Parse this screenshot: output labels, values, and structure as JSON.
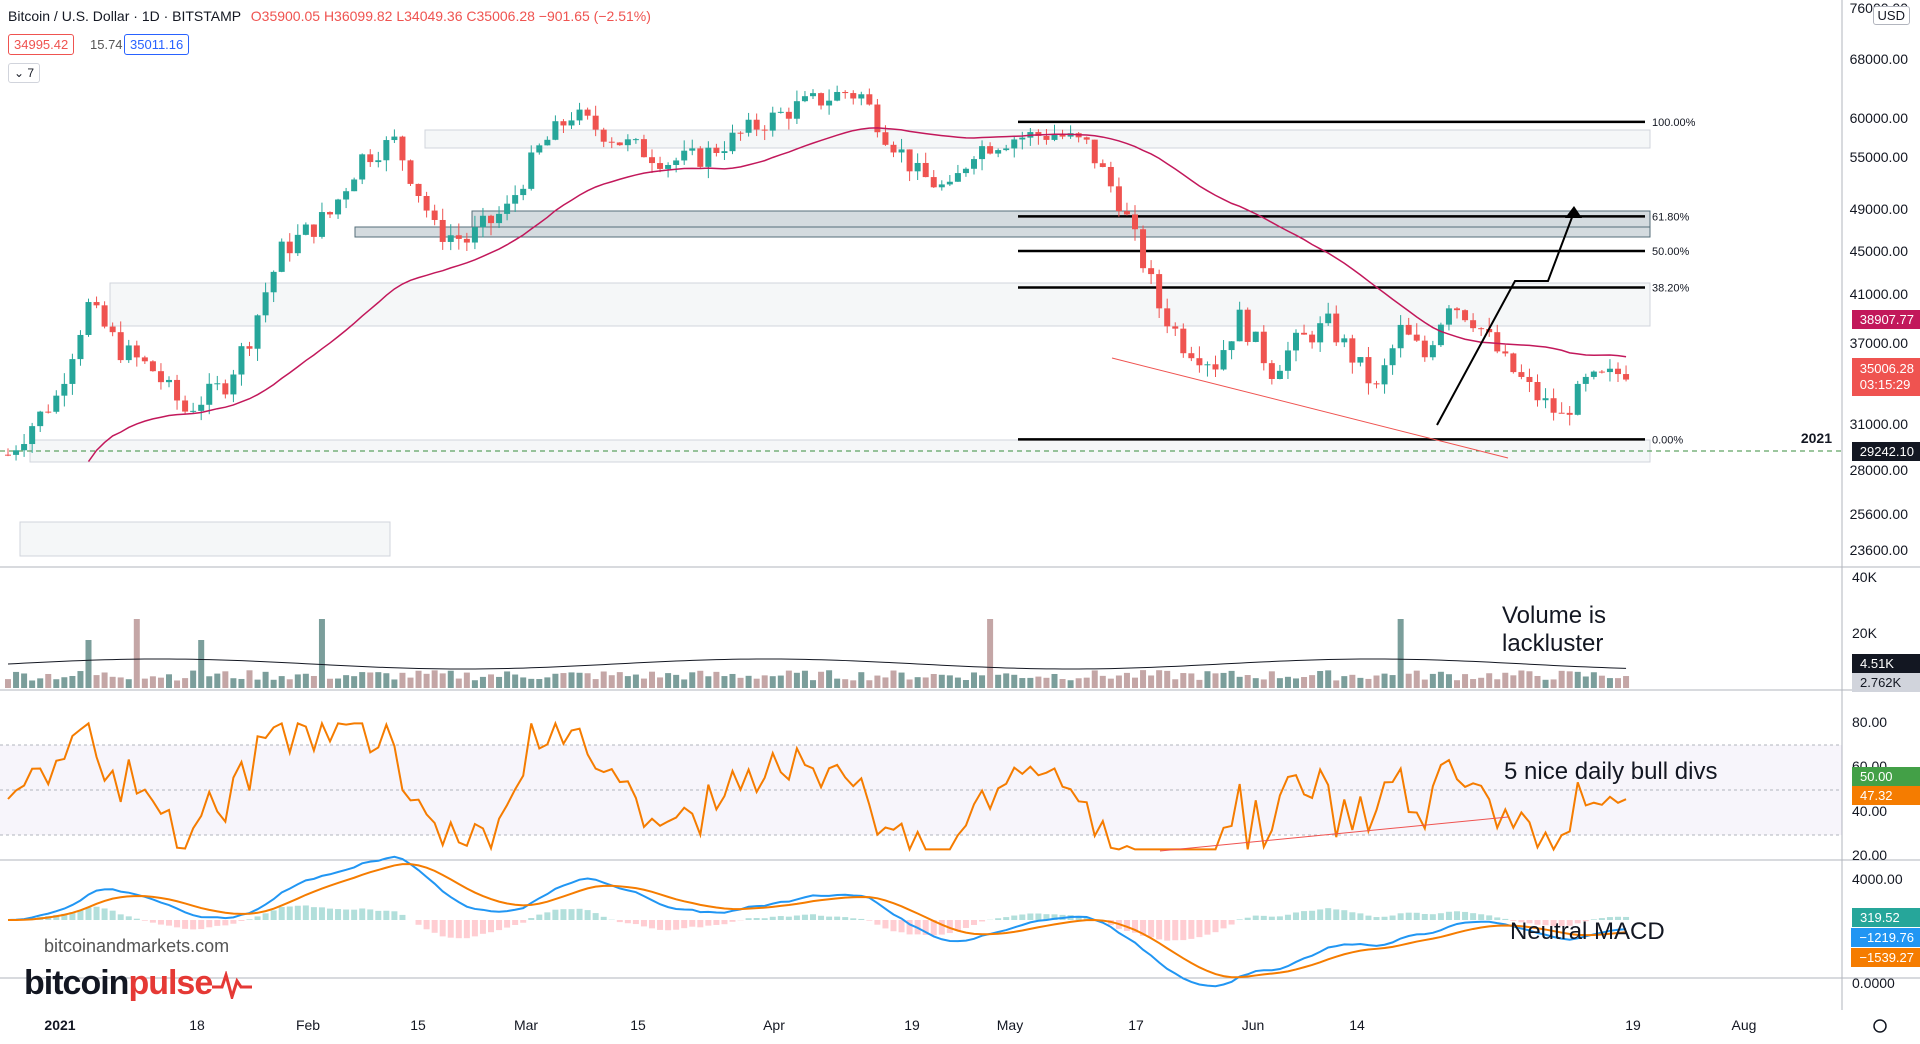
{
  "header": {
    "symbol": "Bitcoin / U.S. Dollar · 1D · BITSTAMP",
    "ohlc": "O35900.05 H36099.82 L34049.36 C35006.28 −901.65 (−2.51%)",
    "bid": "34995.42",
    "spread": "15.74",
    "ask": "35011.16",
    "indicator_count": "7"
  },
  "currency": "USD",
  "chart_data": [
    {
      "type": "candlestick",
      "title": "Bitcoin / U.S. Dollar · 1D · BITSTAMP",
      "ylim": [
        22500,
        76000
      ],
      "y_ticks": [
        "76000.00",
        "68000.00",
        "60000.00",
        "55000.00",
        "49000.00",
        "45000.00",
        "41000.00",
        "37000.00",
        "31000.00",
        "28000.00",
        "25600.00",
        "23600.00"
      ],
      "x_ticks": [
        "2021",
        "18",
        "Feb",
        "15",
        "Mar",
        "15",
        "Apr",
        "19",
        "May",
        "17",
        "Jun",
        "14",
        "19",
        "Aug"
      ],
      "year_marker": "2021",
      "last_price": "35006.28",
      "countdown": "03:15:29",
      "ma_last": "38907.77",
      "support_level": "29242.10",
      "fib_levels": [
        {
          "label": "100.00%",
          "value": 59500
        },
        {
          "label": "61.80%",
          "value": 48300
        },
        {
          "label": "50.00%",
          "value": 45000
        },
        {
          "label": "38.20%",
          "value": 41600
        },
        {
          "label": "0.00%",
          "value": 30000
        }
      ]
    },
    {
      "type": "bar",
      "title": "Volume",
      "y_ticks": [
        "40K",
        "20K"
      ],
      "last_volume": "4.51K",
      "volume_ma": "2.762K"
    },
    {
      "type": "line",
      "title": "RSI",
      "y_ticks": [
        "80.00",
        "60.00",
        "40.00",
        "20.00"
      ],
      "rsi_ma": "50.00",
      "rsi": "47.32"
    },
    {
      "type": "line",
      "title": "MACD",
      "y_ticks": [
        "4000.00",
        "0.0000"
      ],
      "histogram": "319.52",
      "macd": "−1219.76",
      "signal": "−1539.27"
    }
  ],
  "annotations": {
    "volume": "Volume is lackluster",
    "rsi": "5 nice daily bull divs",
    "macd": "Neutral MACD"
  },
  "branding": {
    "site": "bitcoinandmarkets.com",
    "logo_a": "bitcoin",
    "logo_b": "pulse"
  },
  "colors": {
    "up": "#26a69a",
    "down": "#ef5350",
    "ma": "#c2185b",
    "rsi": "#f57c00",
    "macd": "#2196f3",
    "signal": "#f57c00"
  }
}
